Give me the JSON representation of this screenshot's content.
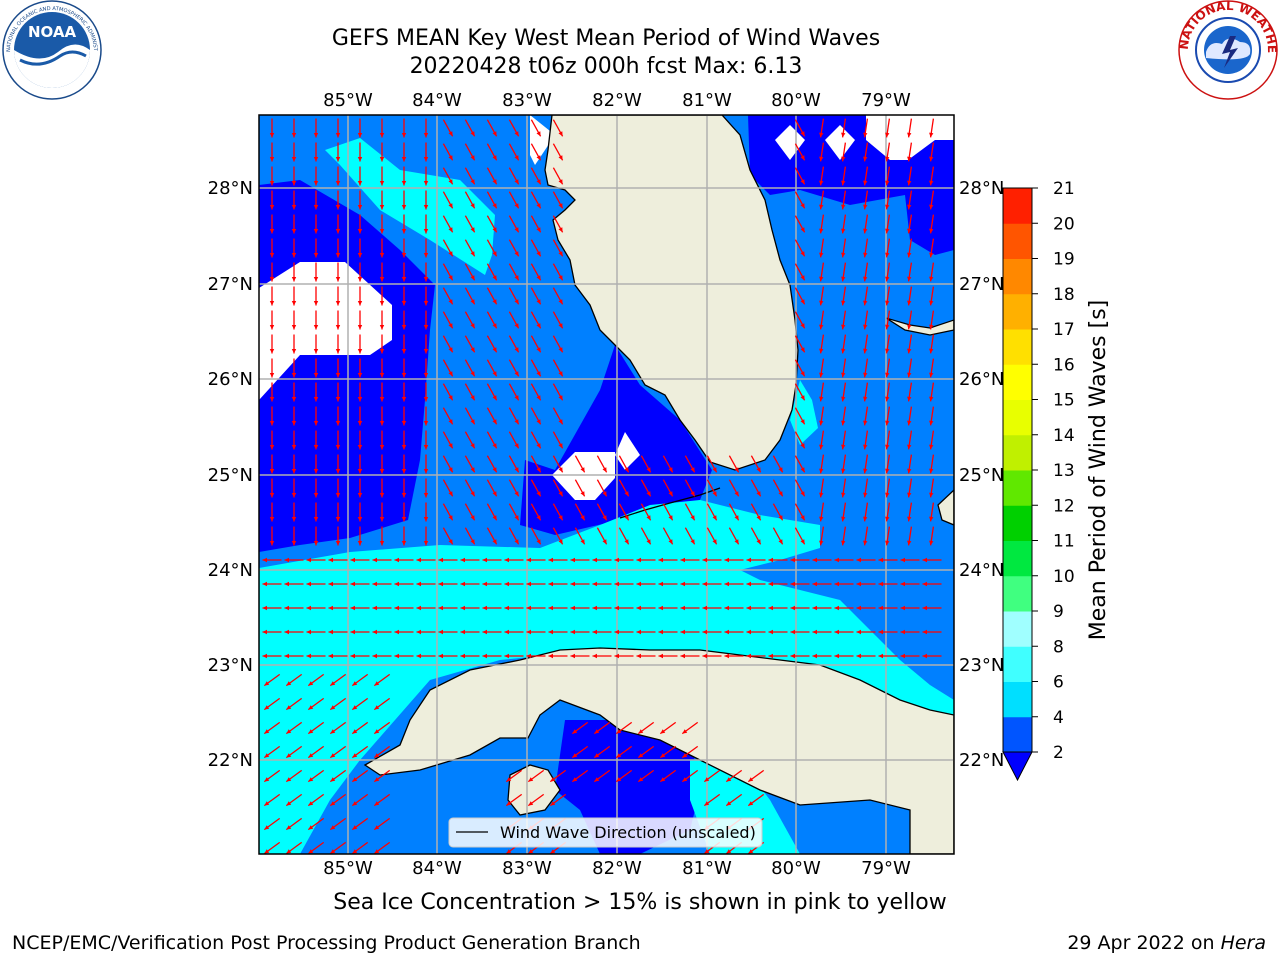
{
  "title": {
    "line1": "GEFS MEAN Key West Mean Period of Wind Waves",
    "line2": "20220428 t06z 000h fcst   Max: 6.13"
  },
  "map": {
    "lon_labels": [
      "85°W",
      "84°W",
      "83°W",
      "82°W",
      "81°W",
      "80°W",
      "79°W"
    ],
    "lat_labels": [
      "28°N",
      "27°N",
      "26°N",
      "25°N",
      "24°N",
      "23°N",
      "22°N"
    ],
    "legend_label": "Wind Wave Direction (unscaled)",
    "arrow_color": "#ff0000",
    "land_color": "#eeeedc",
    "grid_color": "#b0b0b0"
  },
  "colorbar": {
    "label": "Mean Period of Wind Waves [s]",
    "ticks": [
      "2",
      "4",
      "6",
      "8",
      "9",
      "10",
      "11",
      "12",
      "13",
      "14",
      "15",
      "16",
      "17",
      "18",
      "19",
      "20",
      "21"
    ],
    "colors": [
      "#0055ff",
      "#00dfff",
      "#40ffff",
      "#a0ffff",
      "#40ff80",
      "#00e840",
      "#00d000",
      "#60e800",
      "#c0f000",
      "#e8ff00",
      "#ffff00",
      "#ffe000",
      "#ffb000",
      "#ff8800",
      "#ff5500",
      "#ff2000"
    ],
    "extend_color": "#0000ff"
  },
  "field_colors": {
    "under_2": "#0000ff",
    "p2_4": "#0080ff",
    "p4_6": "#00ffff"
  },
  "logos": {
    "noaa_text": "NOAA",
    "noaa_ring": "NATIONAL OCEANIC AND ATMOSPHERIC ADMINISTRATION · U.S. DEPARTMENT OF COMMERCE",
    "nws_ring": "NATIONAL WEATHER SERVICE"
  },
  "note": "Sea Ice Concentration > 15% is shown in pink to yellow",
  "footer": {
    "left": "NCEP/EMC/Verification Post Processing Product Generation Branch",
    "right_prefix": "29 Apr 2022 on ",
    "right_machine": "Hera"
  }
}
